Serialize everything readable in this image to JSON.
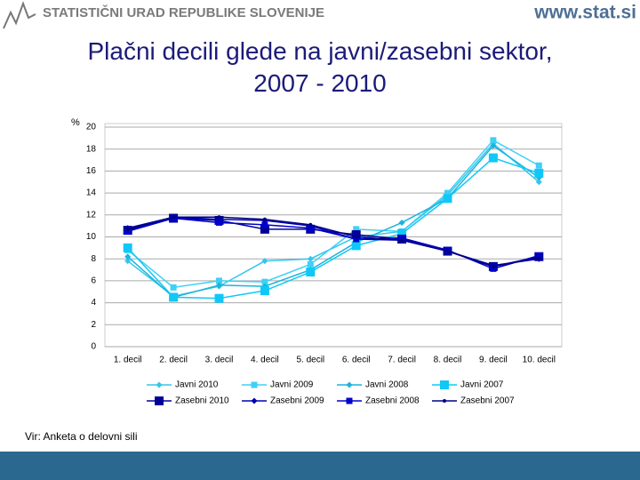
{
  "header": {
    "organization": "STATISTIČNI URAD REPUBLIKE SLOVENIJE",
    "website": "www.stat.si"
  },
  "chart_data": {
    "type": "line",
    "title": "Plačni decili glede na javni/zasebni sektor, 2007 - 2010",
    "y_label": "%",
    "categories": [
      "1. decil",
      "2. decil",
      "3. decil",
      "4. decil",
      "5. decil",
      "6. decil",
      "7. decil",
      "8. decil",
      "9. decil",
      "10. decil"
    ],
    "ylim": [
      0,
      20
    ],
    "yticks": [
      0,
      2,
      4,
      6,
      8,
      10,
      12,
      14,
      16,
      18,
      20
    ],
    "grid": true,
    "series": [
      {
        "name": "Javni 2010",
        "color": "#33c6ea",
        "marker": "diamond",
        "values": [
          7.8,
          4.6,
          5.5,
          7.8,
          8.0,
          10.0,
          10.5,
          13.8,
          18.5,
          15.0
        ]
      },
      {
        "name": "Javni 2009",
        "color": "#3fd0f5",
        "marker": "square",
        "values": [
          8.8,
          5.4,
          6.0,
          5.9,
          7.5,
          10.7,
          10.5,
          14.0,
          18.8,
          16.5
        ]
      },
      {
        "name": "Javni 2008",
        "color": "#1ab4dc",
        "marker": "diamond",
        "values": [
          8.2,
          4.5,
          5.6,
          5.5,
          7.0,
          9.5,
          11.3,
          13.5,
          18.3,
          15.4
        ]
      },
      {
        "name": "Javni 2007",
        "color": "#10c8f8",
        "marker": "bigsquare",
        "values": [
          9.0,
          4.5,
          4.4,
          5.1,
          6.8,
          9.2,
          10.3,
          13.5,
          17.2,
          15.8
        ]
      },
      {
        "name": "Zasebni 2010",
        "color": "#000099",
        "marker": "bigsquare",
        "values": [
          10.6,
          11.7,
          11.5,
          10.7,
          10.7,
          10.2,
          9.8,
          8.7,
          7.3,
          8.2
        ]
      },
      {
        "name": "Zasebni 2009",
        "color": "#0000b0",
        "marker": "diamond",
        "values": [
          10.8,
          11.8,
          11.6,
          11.5,
          11.0,
          9.8,
          9.7,
          8.7,
          7.4,
          8.0
        ]
      },
      {
        "name": "Zasebni 2008",
        "color": "#0000cc",
        "marker": "square",
        "values": [
          10.5,
          11.7,
          11.3,
          11.1,
          10.8,
          9.8,
          9.9,
          8.8,
          7.1,
          8.3
        ]
      },
      {
        "name": "Zasebni 2007",
        "color": "#000080",
        "marker": "dot",
        "values": [
          10.7,
          11.8,
          11.8,
          11.6,
          11.1,
          10.0,
          9.7,
          8.7,
          7.3,
          8.1
        ]
      }
    ],
    "source": "Vir: Anketa o delovni sili"
  }
}
